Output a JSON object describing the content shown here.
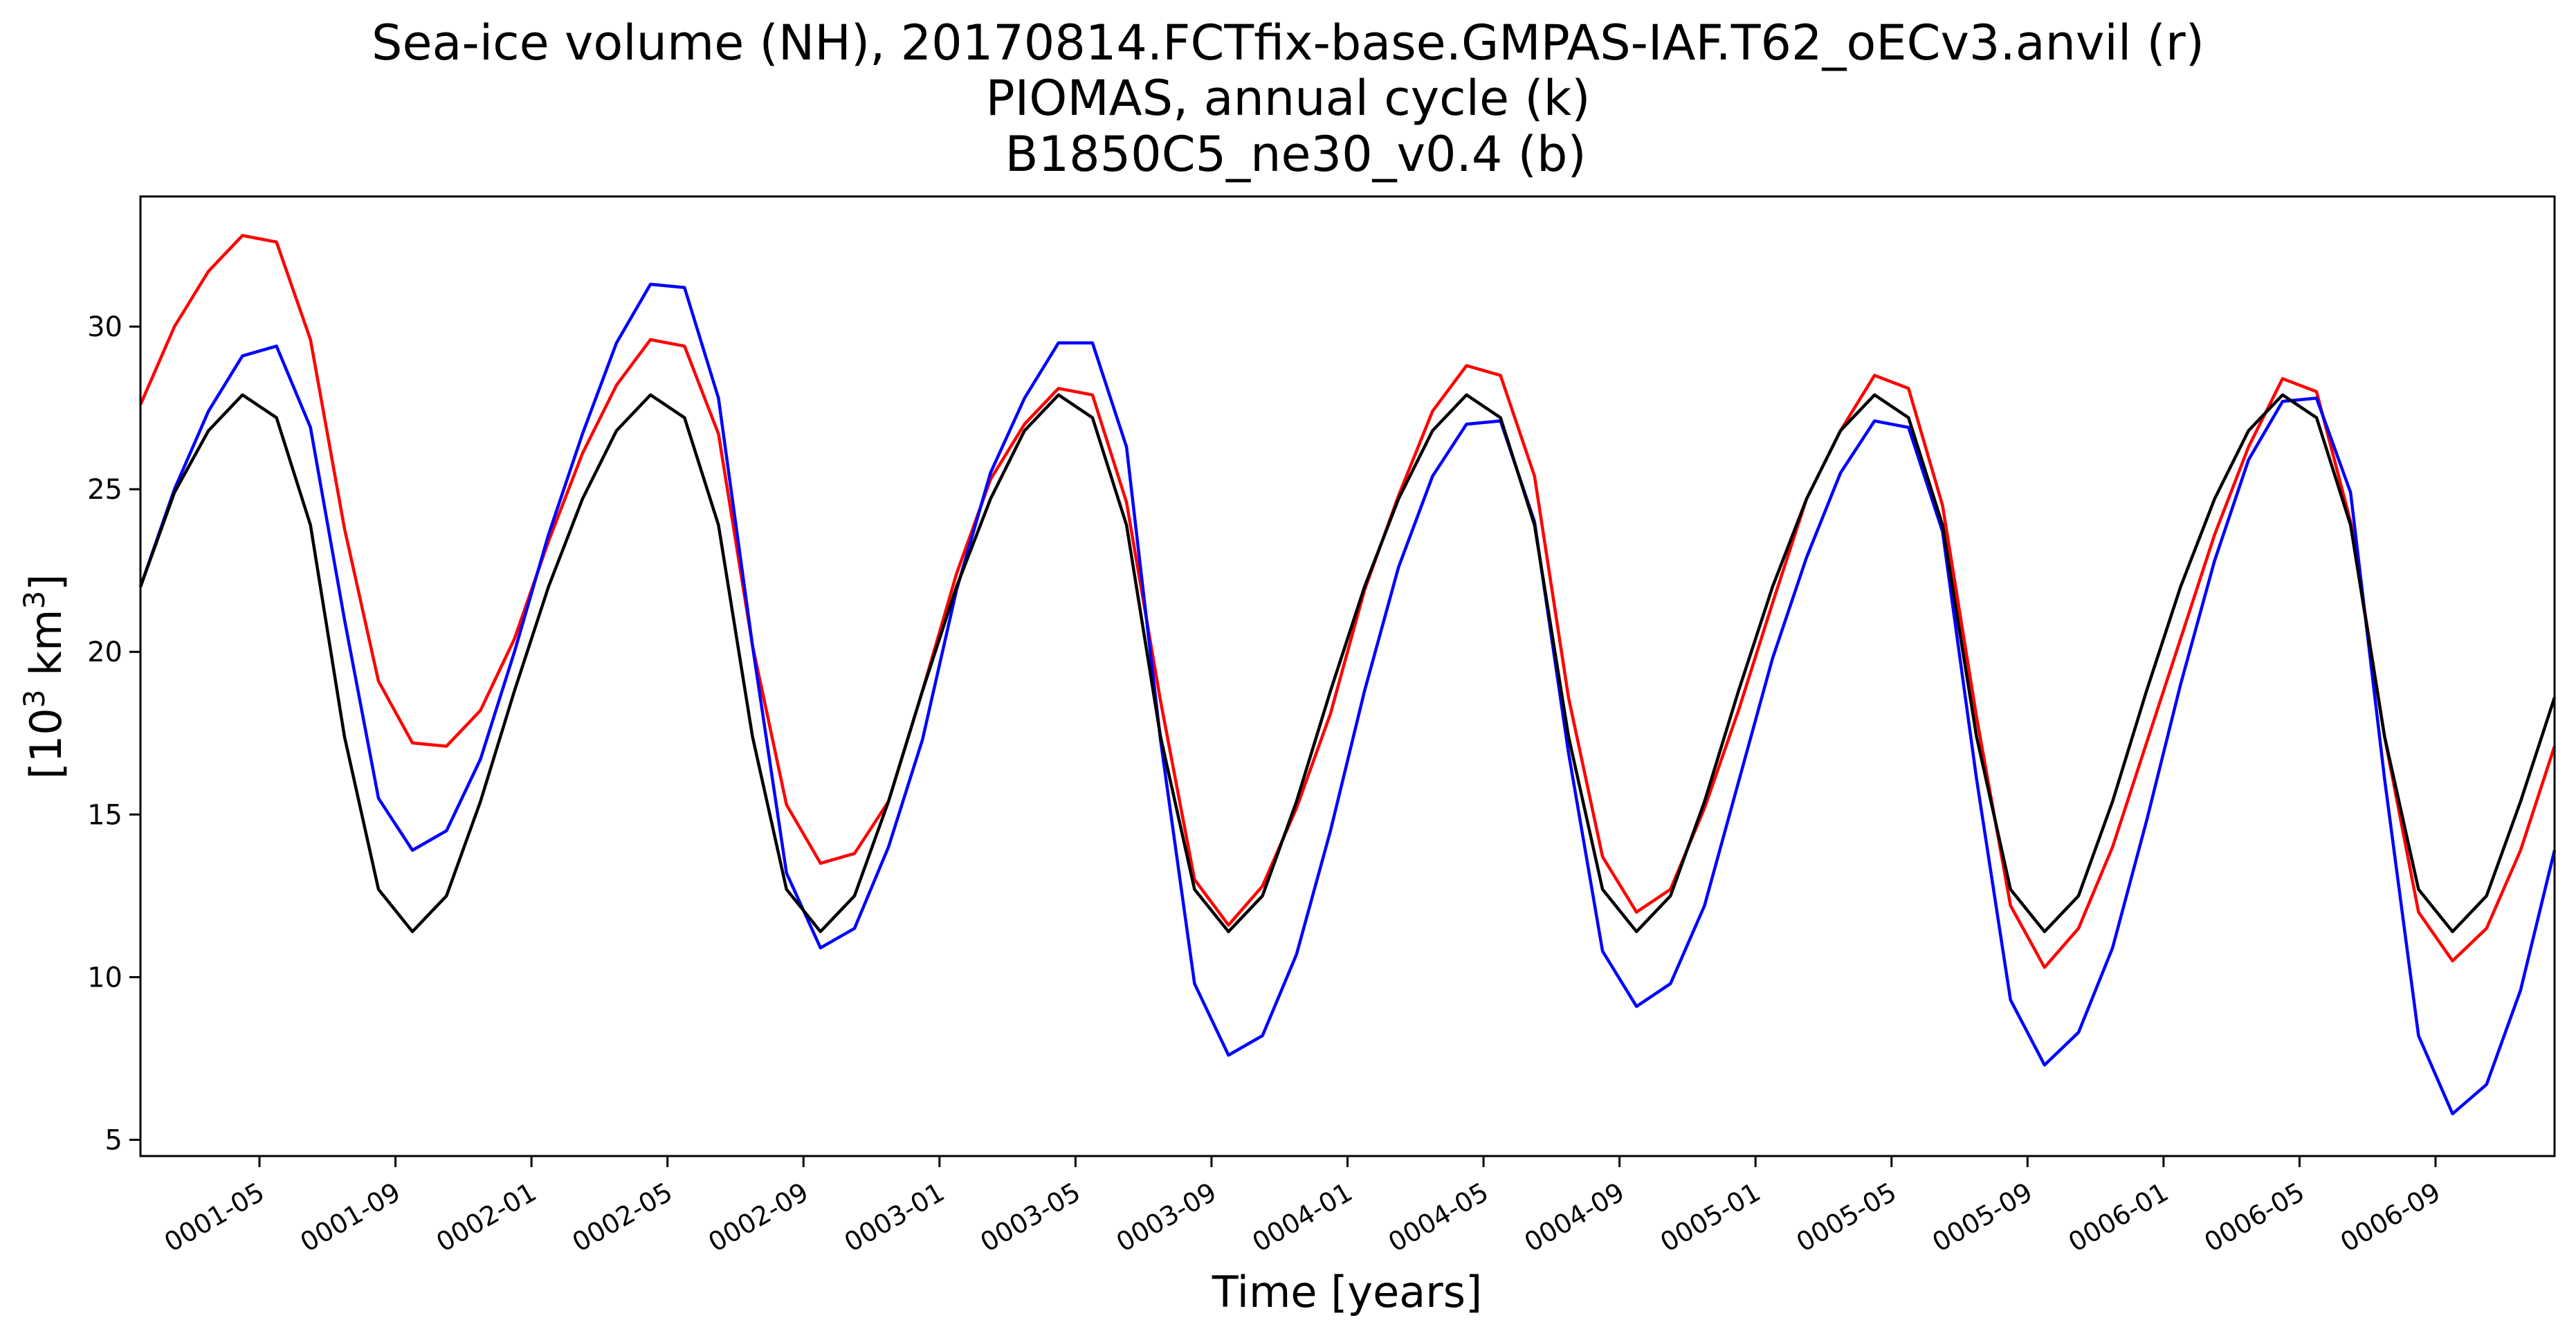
{
  "chart_data": {
    "type": "line",
    "title_lines": [
      "Sea-ice volume (NH), 20170814.FCTfix-base.GMPAS-IAF.T62_oECv3.anvil (r)",
      "PIOMAS, annual cycle (k)",
      " B1850C5_ne30_v0.4 (b)"
    ],
    "xlabel": "Time [years]",
    "ylabel_base": "[10",
    "ylabel_sup1": "3",
    "ylabel_mid": " km",
    "ylabel_sup2": "3",
    "ylabel_end": "]",
    "ylim": [
      4.5,
      34
    ],
    "xlim": [
      1,
      72
    ],
    "yticks": [
      5,
      10,
      15,
      20,
      25,
      30
    ],
    "xticks": [
      {
        "x": 4.5,
        "label": "0001-05"
      },
      {
        "x": 8.5,
        "label": "0001-09"
      },
      {
        "x": 12.5,
        "label": "0002-01"
      },
      {
        "x": 16.5,
        "label": "0002-05"
      },
      {
        "x": 20.5,
        "label": "0002-09"
      },
      {
        "x": 24.5,
        "label": "0003-01"
      },
      {
        "x": 28.5,
        "label": "0003-05"
      },
      {
        "x": 32.5,
        "label": "0003-09"
      },
      {
        "x": 36.5,
        "label": "0004-01"
      },
      {
        "x": 40.5,
        "label": "0004-05"
      },
      {
        "x": 44.5,
        "label": "0004-09"
      },
      {
        "x": 48.5,
        "label": "0005-01"
      },
      {
        "x": 52.5,
        "label": "0005-05"
      },
      {
        "x": 56.5,
        "label": "0005-09"
      },
      {
        "x": 60.5,
        "label": "0006-01"
      },
      {
        "x": 64.5,
        "label": "0006-05"
      },
      {
        "x": 68.5,
        "label": "0006-09"
      }
    ],
    "grid": false,
    "x": [
      1,
      2,
      3,
      4,
      5,
      6,
      7,
      8,
      9,
      10,
      11,
      12,
      13,
      14,
      15,
      16,
      17,
      18,
      19,
      20,
      21,
      22,
      23,
      24,
      25,
      26,
      27,
      28,
      29,
      30,
      31,
      32,
      33,
      34,
      35,
      36,
      37,
      38,
      39,
      40,
      41,
      42,
      43,
      44,
      45,
      46,
      47,
      48,
      49,
      50,
      51,
      52,
      53,
      54,
      55,
      56,
      57,
      58,
      59,
      60,
      61,
      62,
      63,
      64,
      65,
      66,
      67,
      68,
      69,
      70,
      71,
      72
    ],
    "series": [
      {
        "color": "#ff0000",
        "values": [
          27.6,
          30.0,
          31.7,
          32.8,
          32.6,
          29.6,
          23.8,
          19.1,
          17.2,
          17.1,
          18.2,
          20.4,
          23.4,
          26.1,
          28.2,
          29.6,
          29.4,
          26.7,
          20.2,
          15.3,
          13.5,
          13.8,
          15.4,
          18.8,
          22.4,
          25.3,
          27.0,
          28.1,
          27.9,
          24.6,
          18.5,
          13.0,
          11.6,
          12.8,
          15.2,
          18.1,
          21.9,
          24.8,
          27.4,
          28.8,
          28.5,
          25.4,
          18.6,
          13.7,
          12.0,
          12.7,
          15.2,
          18.2,
          21.5,
          24.7,
          26.8,
          28.5,
          28.1,
          24.5,
          18.0,
          12.2,
          10.3,
          11.5,
          14.0,
          17.2,
          20.4,
          23.6,
          26.3,
          28.4,
          28.0,
          24.0,
          17.4,
          12.0,
          10.5,
          11.5,
          13.9,
          17.1
        ]
      },
      {
        "color": "#0000ff",
        "values": [
          22.0,
          25.0,
          27.4,
          29.1,
          29.4,
          26.9,
          21.0,
          15.5,
          13.9,
          14.5,
          16.7,
          20.0,
          23.6,
          26.7,
          29.5,
          31.3,
          31.2,
          27.8,
          20.2,
          13.2,
          10.9,
          11.5,
          14.0,
          17.3,
          21.9,
          25.5,
          27.8,
          29.5,
          29.5,
          26.3,
          17.3,
          9.8,
          7.6,
          8.2,
          10.7,
          14.5,
          18.8,
          22.6,
          25.4,
          27.0,
          27.1,
          24.0,
          16.9,
          10.8,
          9.1,
          9.8,
          12.2,
          16.0,
          19.8,
          22.9,
          25.5,
          27.1,
          26.9,
          23.7,
          16.1,
          9.3,
          7.3,
          8.3,
          10.9,
          14.8,
          19.0,
          22.8,
          25.9,
          27.7,
          27.8,
          24.9,
          16.1,
          8.2,
          5.8,
          6.7,
          9.6,
          13.9
        ]
      },
      {
        "color": "#000000",
        "values": [
          22.0,
          24.9,
          26.8,
          27.9,
          27.2,
          23.9,
          17.4,
          12.7,
          11.4,
          12.5,
          15.4,
          18.8,
          22.0,
          24.7,
          26.8,
          27.9,
          27.2,
          23.9,
          17.4,
          12.7,
          11.4,
          12.5,
          15.4,
          18.8,
          22.0,
          24.7,
          26.8,
          27.9,
          27.2,
          23.9,
          17.4,
          12.7,
          11.4,
          12.5,
          15.4,
          18.8,
          22.0,
          24.7,
          26.8,
          27.9,
          27.2,
          23.9,
          17.4,
          12.7,
          11.4,
          12.5,
          15.4,
          18.8,
          22.0,
          24.7,
          26.8,
          27.9,
          27.2,
          23.9,
          17.4,
          12.7,
          11.4,
          12.5,
          15.4,
          18.8,
          22.0,
          24.7,
          26.8,
          27.9,
          27.2,
          23.9,
          17.4,
          12.7,
          11.4,
          12.5,
          15.4,
          18.6
        ]
      }
    ]
  }
}
